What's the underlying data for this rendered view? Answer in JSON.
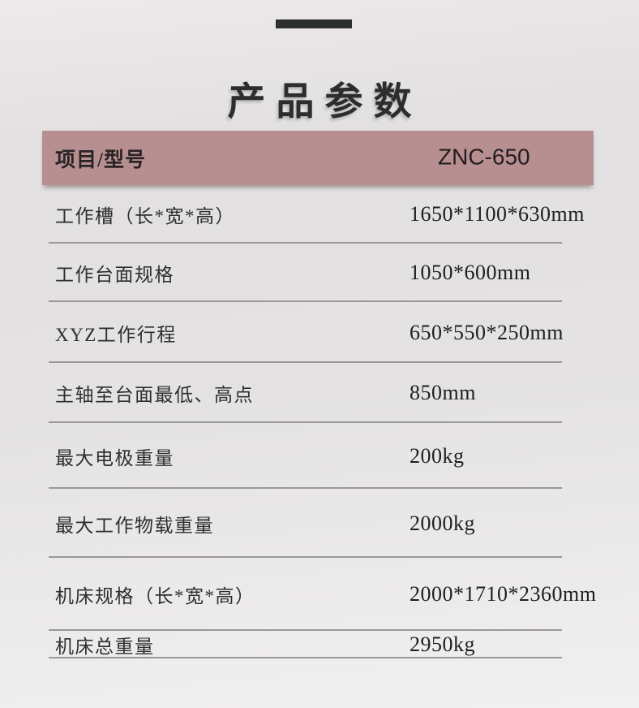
{
  "page": {
    "title": "产品参数",
    "accent_bar_color": "#2b302e",
    "header_bg_color": "#b88f90",
    "divider_color": "#9b9899"
  },
  "table": {
    "header": {
      "item_label": "项目/型号",
      "model": "ZNC-650"
    },
    "rows": [
      {
        "label": "工作槽（长*宽*高）",
        "value": "1650*1100*630mm"
      },
      {
        "label": "工作台面规格",
        "value": "1050*600mm"
      },
      {
        "label": "XYZ工作行程",
        "value": "650*550*250mm"
      },
      {
        "label": "主轴至台面最低、高点",
        "value": "850mm"
      },
      {
        "label": "最大电极重量",
        "value": "200kg"
      },
      {
        "label": "最大工作物载重量",
        "value": "2000kg"
      },
      {
        "label": "机床规格（长*宽*高）",
        "value": "2000*1710*2360mm"
      },
      {
        "label": "机床总重量",
        "value": "2950kg"
      }
    ]
  }
}
